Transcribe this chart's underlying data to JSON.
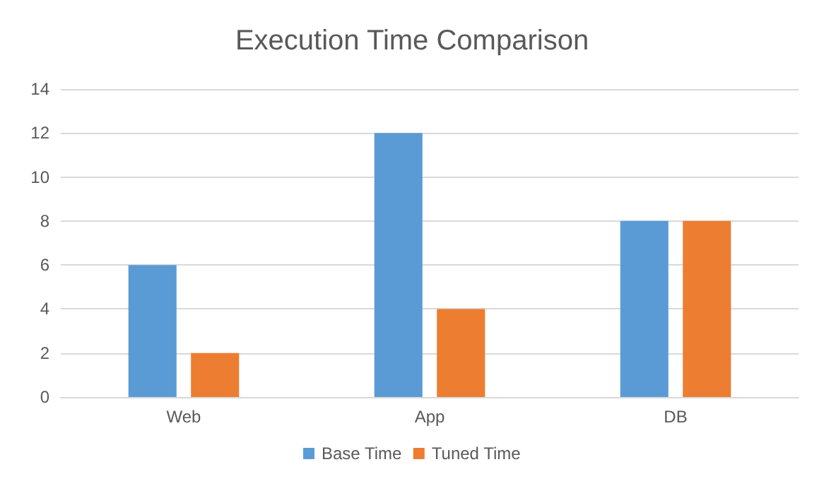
{
  "chart_data": {
    "type": "bar",
    "title": "Execution Time Comparison",
    "categories": [
      "Web",
      "App",
      "DB"
    ],
    "series": [
      {
        "name": "Base Time",
        "color": "#5b9bd5",
        "values": [
          6,
          12,
          8
        ]
      },
      {
        "name": "Tuned Time",
        "color": "#ed7d31",
        "values": [
          2,
          4,
          8
        ]
      }
    ],
    "ylim": [
      0,
      14
    ],
    "yticks": [
      0,
      2,
      4,
      6,
      8,
      10,
      12,
      14
    ],
    "grid": "y",
    "legend": "bottom"
  }
}
